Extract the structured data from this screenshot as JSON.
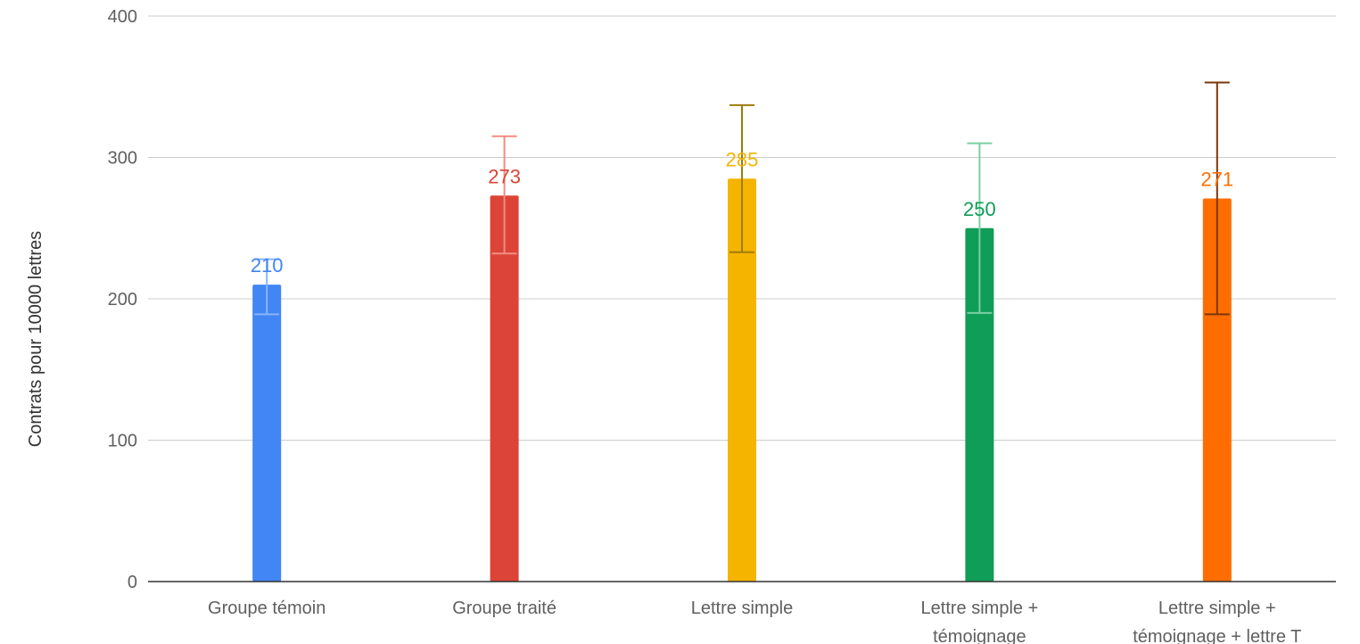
{
  "chart_data": {
    "type": "bar",
    "ylabel": "Contrats pour 10000 lettres",
    "xlabel": "",
    "ylim": [
      0,
      400
    ],
    "yticks": [
      "0",
      "100",
      "200",
      "300",
      "400"
    ],
    "grid": true,
    "categories": [
      [
        "Groupe témoin"
      ],
      [
        "Groupe traité"
      ],
      [
        "Lettre simple"
      ],
      [
        "Lettre simple +",
        "témoignage"
      ],
      [
        "Lettre simple +",
        "témoignage + lettre T"
      ]
    ],
    "values": [
      210,
      273,
      285,
      250,
      271
    ],
    "data_labels": [
      "210",
      "273",
      "285",
      "250",
      "271"
    ],
    "error_bars": [
      {
        "low": 189,
        "high": 228
      },
      {
        "low": 232,
        "high": 315
      },
      {
        "low": 233,
        "high": 337
      },
      {
        "low": 190,
        "high": 310
      },
      {
        "low": 189,
        "high": 353
      }
    ],
    "colors": [
      "#4285f4",
      "#db4437",
      "#f4b400",
      "#0f9d58",
      "#ff6d01"
    ],
    "error_colors": [
      "#8ab4f8",
      "#f28b82",
      "#9c7c0a",
      "#7ccfa2",
      "#7a3608"
    ]
  }
}
